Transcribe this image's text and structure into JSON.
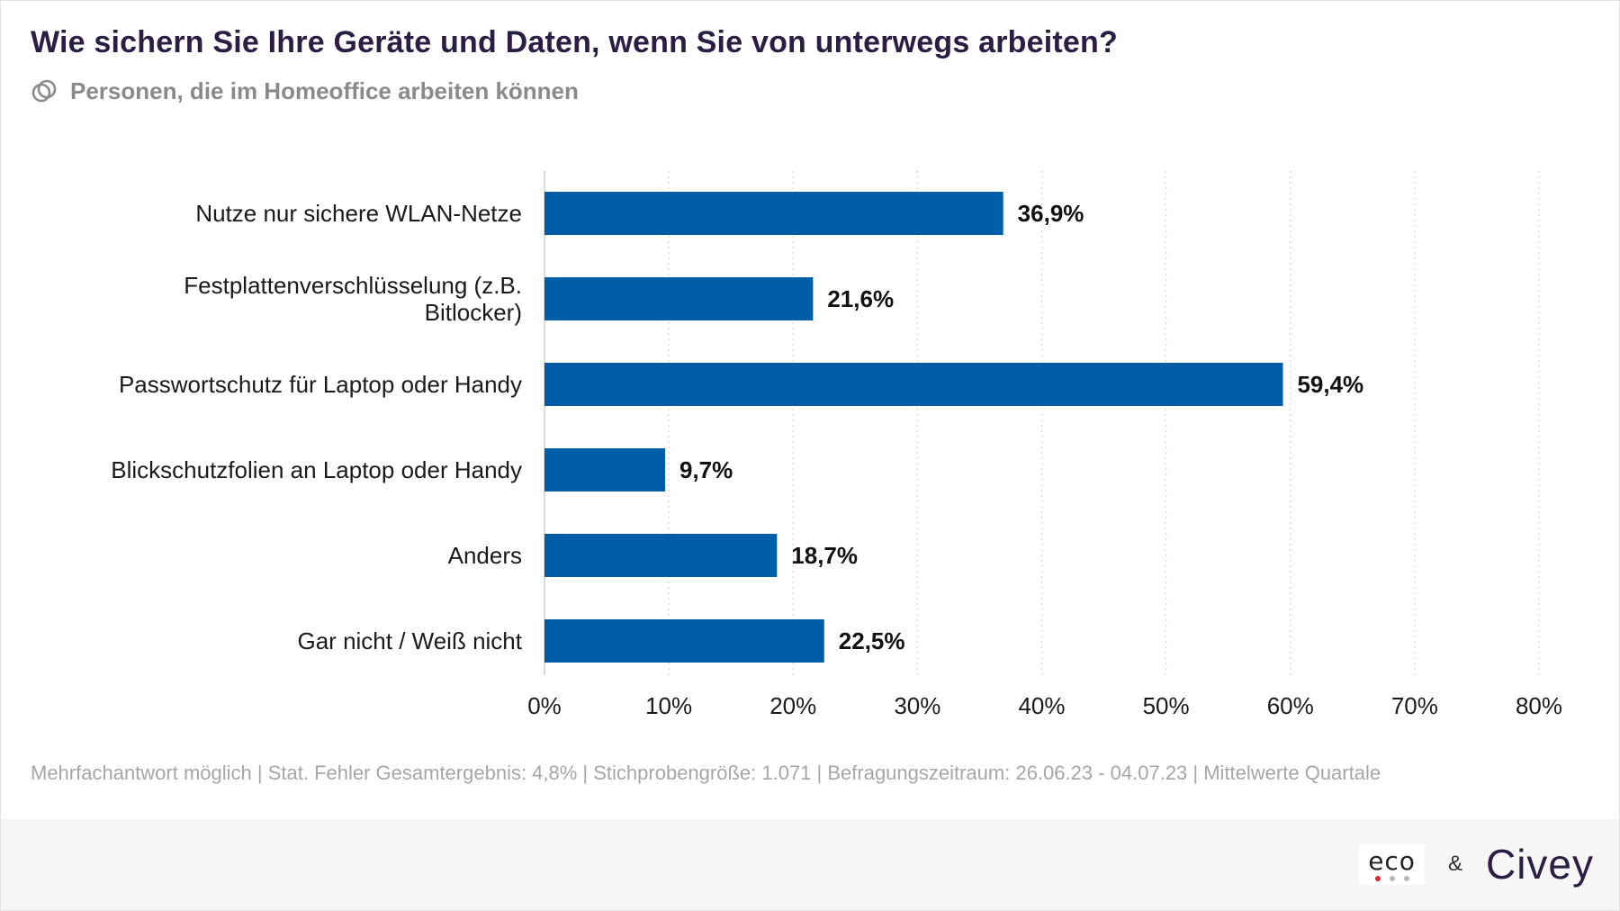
{
  "header": {
    "title": "Wie sichern Sie Ihre Geräte und Daten, wenn Sie von unterwegs arbeiten?",
    "subtitle": "Personen, die im Homeoffice arbeiten können",
    "subtitle_icon": "people-group-icon"
  },
  "chart_data": {
    "type": "bar",
    "orientation": "horizontal",
    "categories": [
      [
        "Nutze nur sichere WLAN-Netze"
      ],
      [
        "Festplattenverschlüsselung (z.B.",
        "Bitlocker)"
      ],
      [
        "Passwortschutz für Laptop oder Handy"
      ],
      [
        "Blickschutzfolien an Laptop oder Handy"
      ],
      [
        "Anders"
      ],
      [
        "Gar nicht / Weiß nicht"
      ]
    ],
    "values": [
      36.9,
      21.6,
      59.4,
      9.7,
      18.7,
      22.5
    ],
    "value_labels": [
      "36,9%",
      "21,6%",
      "59,4%",
      "9,7%",
      "18,7%",
      "22,5%"
    ],
    "xlim": [
      0,
      80
    ],
    "x_ticks": [
      0,
      10,
      20,
      30,
      40,
      50,
      60,
      70,
      80
    ],
    "x_tick_labels": [
      "0%",
      "10%",
      "20%",
      "30%",
      "40%",
      "50%",
      "60%",
      "70%",
      "80%"
    ],
    "grid": "vertical dotted",
    "bar_color": "#005ea8"
  },
  "footnote": "Mehrfachantwort möglich | Stat. Fehler Gesamtergebnis: 4,8% | Stichprobengröße: 1.071 | Befragungszeitraum: 26.06.23 - 04.07.23 | Mittelwerte Quartale",
  "footer": {
    "eco_logo": "eco",
    "eco_dot_colors": [
      "#d9262f",
      "#b8b8b8",
      "#b8b8b8"
    ],
    "ampersand": "&",
    "civey_logo": "Civey"
  }
}
